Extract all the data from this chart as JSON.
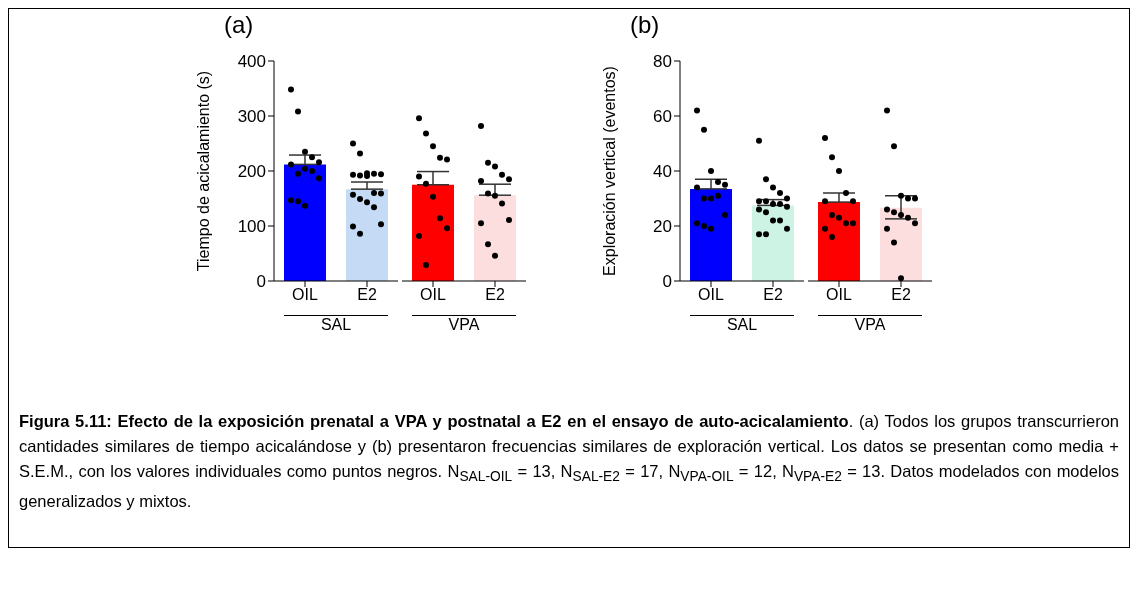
{
  "chart_data": [
    {
      "type": "bar",
      "title": "(a)",
      "ylabel": "Tiempo de acicalamiento (s)",
      "categories": [
        "OIL",
        "E2"
      ],
      "ylim": [
        0,
        400
      ],
      "yticks": [
        0,
        100,
        200,
        300,
        400
      ],
      "annotations": [
        "SAL"
      ],
      "series": [
        {
          "type": "bar",
          "values": [
            212,
            167
          ],
          "errors": [
            [
              212,
              229
            ],
            [
              167,
              180
            ]
          ],
          "colors": [
            "#0000ff",
            "#c5dbf5"
          ]
        },
        {
          "type": "scatter",
          "color": "#000000",
          "x": [
            "OIL",
            "OIL",
            "OIL",
            "OIL",
            "OIL",
            "OIL",
            "OIL",
            "OIL",
            "OIL",
            "OIL",
            "OIL",
            "OIL",
            "OIL",
            "E2",
            "E2",
            "E2",
            "E2",
            "E2",
            "E2",
            "E2",
            "E2",
            "E2",
            "E2",
            "E2",
            "E2",
            "E2",
            "E2",
            "E2",
            "E2",
            "E2"
          ],
          "values": [
            348,
            308,
            235,
            225,
            216,
            212,
            195,
            204,
            200,
            187,
            147,
            145,
            137,
            250,
            232,
            196,
            195,
            194,
            193,
            192,
            191,
            160,
            159,
            157,
            149,
            143,
            134,
            103,
            99,
            86
          ]
        }
      ]
    },
    {
      "type": "bar",
      "categories": [
        "OIL",
        "E2"
      ],
      "ylim": [
        0,
        400
      ],
      "yticks": [
        0,
        100,
        200,
        300,
        400
      ],
      "tick_labels": "x",
      "annotations": [
        "VPA"
      ],
      "series": [
        {
          "type": "bar",
          "values": [
            175,
            156
          ],
          "errors": [
            [
              175,
              199
            ],
            [
              156,
              176
            ]
          ],
          "colors": [
            "#ff0000",
            "#fddede"
          ]
        },
        {
          "type": "scatter",
          "color": "#000000",
          "x": [
            "OIL",
            "OIL",
            "OIL",
            "OIL",
            "OIL",
            "OIL",
            "OIL",
            "OIL",
            "OIL",
            "OIL",
            "OIL",
            "OIL",
            "E2",
            "E2",
            "E2",
            "E2",
            "E2",
            "E2",
            "E2",
            "E2",
            "E2",
            "E2",
            "E2",
            "E2",
            "E2"
          ],
          "values": [
            296,
            268,
            245,
            224,
            221,
            190,
            177,
            153,
            114,
            96,
            82,
            29,
            282,
            215,
            208,
            193,
            185,
            182,
            159,
            155,
            141,
            111,
            105,
            67,
            46
          ]
        }
      ]
    },
    {
      "type": "bar",
      "title": "(b)",
      "ylabel": "Exploración vertical (eventos)",
      "categories": [
        "OIL",
        "E2"
      ],
      "ylim": [
        0,
        80
      ],
      "yticks": [
        0,
        20,
        40,
        60,
        80
      ],
      "annotations": [
        "SAL"
      ],
      "series": [
        {
          "type": "bar",
          "values": [
            33.5,
            27.5
          ],
          "errors": [
            [
              33.5,
              37
            ],
            [
              27.5,
              29.6
            ]
          ],
          "colors": [
            "#0000ff",
            "#cdf3e4"
          ]
        },
        {
          "type": "scatter",
          "color": "#000000",
          "x": [
            "OIL",
            "OIL",
            "OIL",
            "OIL",
            "OIL",
            "OIL",
            "OIL",
            "OIL",
            "OIL",
            "OIL",
            "OIL",
            "OIL",
            "OIL",
            "E2",
            "E2",
            "E2",
            "E2",
            "E2",
            "E2",
            "E2",
            "E2",
            "E2",
            "E2",
            "E2",
            "E2",
            "E2",
            "E2",
            "E2",
            "E2",
            "E2"
          ],
          "values": [
            62,
            55,
            40,
            36,
            35,
            34,
            30,
            30,
            31,
            24,
            21,
            20,
            19,
            51,
            37,
            34,
            32,
            30,
            29,
            29,
            28,
            28,
            27,
            26,
            25,
            22,
            22,
            19,
            17,
            17
          ]
        }
      ]
    },
    {
      "type": "bar",
      "categories": [
        "OIL",
        "E2"
      ],
      "ylim": [
        0,
        80
      ],
      "yticks": [
        0,
        20,
        40,
        60,
        80
      ],
      "tick_labels": "x",
      "annotations": [
        "VPA"
      ],
      "series": [
        {
          "type": "bar",
          "values": [
            28.7,
            26.6
          ],
          "errors": [
            [
              28.7,
              32
            ],
            [
              22.6,
              31
            ]
          ],
          "colors": [
            "#ff0000",
            "#fddede"
          ]
        },
        {
          "type": "scatter",
          "color": "#000000",
          "x": [
            "OIL",
            "OIL",
            "OIL",
            "OIL",
            "OIL",
            "OIL",
            "OIL",
            "OIL",
            "OIL",
            "OIL",
            "OIL",
            "OIL",
            "E2",
            "E2",
            "E2",
            "E2",
            "E2",
            "E2",
            "E2",
            "E2",
            "E2",
            "E2",
            "E2",
            "E2",
            "E2"
          ],
          "values": [
            52,
            45,
            40,
            32,
            29,
            29,
            24,
            23,
            21,
            21,
            19,
            16,
            62,
            49,
            31,
            30,
            30,
            26,
            25,
            24,
            23,
            21,
            19,
            14,
            1
          ]
        }
      ]
    },
    {
      "type": "other",
      "annotations": [
        "Figura 5.11: Efecto de la exposición prenatal a VPA y postnatal a E2 en el ensayo de auto-acicalamiento",
        ". (a) Todos los grupos transcurrieron cantidades similares de tiempo acicalándose y (b) presentaron frecuencias similares de exploración vertical. Los datos se presentan como media + S.E.M., con los valores individuales como puntos negros. N$_{SAL-OIL}$ = 13, N$_{SAL-E2}$ = 17, N$_{VPA-OIL}$ = 12, N$_{VPA-E2}$ = 13. Datos modelados con modelos generalizados y mixtos."
      ]
    }
  ]
}
